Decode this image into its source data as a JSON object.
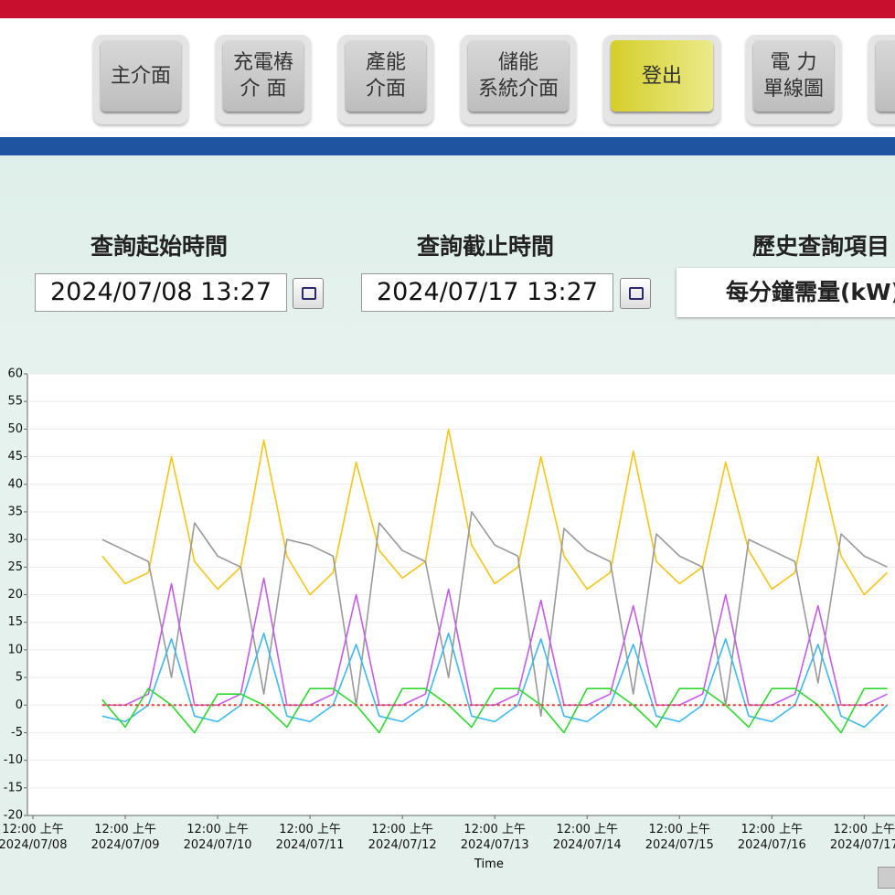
{
  "nav": {
    "buttons": [
      {
        "label": "主介面"
      },
      {
        "label": "充電樁\n介 面"
      },
      {
        "label": "產能\n介面"
      },
      {
        "label": "儲能\n系統介面"
      },
      {
        "label": "登出",
        "active": true
      },
      {
        "label": "電 力\n單線圖"
      }
    ]
  },
  "query": {
    "start_label": "查詢起始時間",
    "start_value": "2024/07/08 13:27",
    "end_label": "查詢截止時間",
    "end_value": "2024/07/17 13:27",
    "item_label": "歷史查詢項目",
    "item_value": "每分鐘需量(kW)"
  },
  "chart_data": {
    "type": "line",
    "x_label": "Time",
    "xlim": [
      "2024/07/08 00:00",
      "2024/07/17 08:00"
    ],
    "xticks": [
      {
        "value": "2024/07/08 00:00",
        "label": "12:00 上午\n2024/07/08"
      },
      {
        "value": "2024/07/09 00:00",
        "label": "12:00 上午\n2024/07/09"
      },
      {
        "value": "2024/07/10 00:00",
        "label": "12:00 上午\n2024/07/10"
      },
      {
        "value": "2024/07/11 00:00",
        "label": "12:00 上午\n2024/07/11"
      },
      {
        "value": "2024/07/12 00:00",
        "label": "12:00 上午\n2024/07/12"
      },
      {
        "value": "2024/07/13 00:00",
        "label": "12:00 上午\n2024/07/13"
      },
      {
        "value": "2024/07/14 00:00",
        "label": "12:00 上午\n2024/07/14"
      },
      {
        "value": "2024/07/15 00:00",
        "label": "12:00 上午\n2024/07/15"
      },
      {
        "value": "2024/07/16 00:00",
        "label": "12:00 上午\n2024/07/16"
      },
      {
        "value": "2024/07/17 00:00",
        "label": "12:00 上午\n2024/07/17"
      }
    ],
    "ylim": [
      -20,
      60
    ],
    "yticks": [
      -20,
      -15,
      -10,
      -5,
      0,
      5,
      10,
      15,
      20,
      25,
      30,
      35,
      40,
      45,
      50,
      55,
      60
    ],
    "grid": true,
    "x": [
      "2024/07/08 18:00",
      "2024/07/09 00:00",
      "2024/07/09 06:00",
      "2024/07/09 12:00",
      "2024/07/09 18:00",
      "2024/07/10 00:00",
      "2024/07/10 06:00",
      "2024/07/10 12:00",
      "2024/07/10 18:00",
      "2024/07/11 00:00",
      "2024/07/11 06:00",
      "2024/07/11 12:00",
      "2024/07/11 18:00",
      "2024/07/12 00:00",
      "2024/07/12 06:00",
      "2024/07/12 12:00",
      "2024/07/12 18:00",
      "2024/07/13 00:00",
      "2024/07/13 06:00",
      "2024/07/13 12:00",
      "2024/07/13 18:00",
      "2024/07/14 00:00",
      "2024/07/14 06:00",
      "2024/07/14 12:00",
      "2024/07/14 18:00",
      "2024/07/15 00:00",
      "2024/07/15 06:00",
      "2024/07/15 12:00",
      "2024/07/15 18:00",
      "2024/07/16 00:00",
      "2024/07/16 06:00",
      "2024/07/16 12:00",
      "2024/07/16 18:00",
      "2024/07/17 00:00",
      "2024/07/17 06:00"
    ],
    "series": [
      {
        "color": "#f5c518",
        "width": 1.6,
        "values": [
          27,
          22,
          24,
          45,
          26,
          21,
          25,
          48,
          27,
          20,
          24,
          44,
          28,
          23,
          26,
          50,
          29,
          22,
          25,
          45,
          27,
          21,
          24,
          46,
          26,
          22,
          25,
          44,
          28,
          21,
          24,
          45,
          27,
          20,
          24
        ]
      },
      {
        "color": "#9a9a9a",
        "width": 1.6,
        "values": [
          30,
          28,
          26,
          5,
          33,
          27,
          25,
          2,
          30,
          29,
          27,
          0,
          33,
          28,
          26,
          5,
          35,
          29,
          27,
          -2,
          32,
          28,
          26,
          2,
          31,
          27,
          25,
          0,
          30,
          28,
          26,
          4,
          31,
          27,
          25
        ]
      },
      {
        "color": "#c45ce8",
        "width": 1.6,
        "values": [
          0,
          0,
          2,
          22,
          0,
          0,
          2,
          23,
          0,
          0,
          2,
          20,
          0,
          0,
          2,
          21,
          0,
          0,
          2,
          19,
          0,
          0,
          2,
          18,
          0,
          0,
          2,
          20,
          0,
          0,
          2,
          18,
          0,
          0,
          2
        ]
      },
      {
        "color": "#3db8f0",
        "width": 1.6,
        "values": [
          -2,
          -3,
          0,
          12,
          -2,
          -3,
          0,
          13,
          -2,
          -3,
          0,
          11,
          -2,
          -3,
          0,
          13,
          -2,
          -3,
          0,
          12,
          -2,
          -3,
          0,
          11,
          -2,
          -3,
          0,
          12,
          -2,
          -3,
          0,
          11,
          -2,
          -4,
          0
        ]
      },
      {
        "color": "#2ed82e",
        "width": 1.6,
        "values": [
          1,
          -4,
          3,
          0,
          -5,
          2,
          2,
          0,
          -4,
          3,
          3,
          0,
          -5,
          3,
          3,
          0,
          -4,
          3,
          3,
          0,
          -5,
          3,
          3,
          0,
          -4,
          3,
          3,
          0,
          -4,
          3,
          3,
          0,
          -5,
          3,
          3
        ]
      },
      {
        "color": "#e0413a",
        "width": 2,
        "dash": true,
        "values": [
          0,
          0,
          0,
          0,
          0,
          0,
          0,
          0,
          0,
          0,
          0,
          0,
          0,
          0,
          0,
          0,
          0,
          0,
          0,
          0,
          0,
          0,
          0,
          0,
          0,
          0,
          0,
          0,
          0,
          0,
          0,
          0,
          0,
          0,
          0
        ]
      }
    ]
  }
}
